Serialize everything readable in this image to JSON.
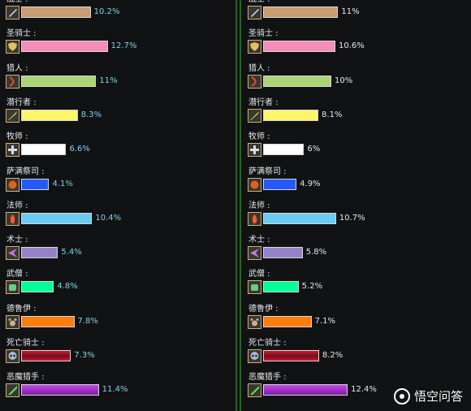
{
  "chart_data": [
    {
      "type": "bar",
      "categories": [
        "战士",
        "圣骑士",
        "猎人",
        "潜行者",
        "牧师",
        "萨满祭司",
        "法师",
        "术士",
        "武僧",
        "德鲁伊",
        "死亡骑士",
        "恶魔猎手"
      ],
      "values": [
        10.2,
        12.7,
        11,
        8.3,
        6.6,
        4.1,
        10.4,
        5.4,
        4.8,
        7.8,
        7.3,
        11.4
      ],
      "value_labels": [
        "10.2%",
        "12.7%",
        "11%",
        "8.3%",
        "6.6%",
        "4.1%",
        "10.4%",
        "5.4%",
        "4.8%",
        "7.8%",
        "7.3%",
        "11.4%"
      ],
      "orientation": "horizontal",
      "grid": false
    },
    {
      "type": "bar",
      "categories": [
        "战士",
        "圣骑士",
        "猎人",
        "潜行者",
        "牧师",
        "萨满祭司",
        "法师",
        "术士",
        "武僧",
        "德鲁伊",
        "死亡骑士",
        "恶魔猎手"
      ],
      "values": [
        11,
        10.6,
        10,
        8.1,
        6,
        4.9,
        10.7,
        5.8,
        5.2,
        7.1,
        8.2,
        12.4
      ],
      "value_labels": [
        "11%",
        "10.6%",
        "10%",
        "8.1%",
        "6%",
        "4.9%",
        "10.7%",
        "5.8%",
        "5.2%",
        "7.1%",
        "8.2%",
        "12.4%"
      ],
      "orientation": "horizontal",
      "grid": false
    }
  ],
  "class_colors": [
    "#c79c6e",
    "#f58cba",
    "#abd473",
    "#fff569",
    "#ffffff",
    "#2459ff",
    "#69ccf0",
    "#9482c9",
    "#00ff96",
    "#ff7d0a",
    "#c41f3b",
    "#a330c9"
  ],
  "class_icons": [
    "sword-icon",
    "shield-icon",
    "bow-icon",
    "dagger-icon",
    "cross-icon",
    "totem-icon",
    "fire-icon",
    "shadow-icon",
    "fist-icon",
    "paw-icon",
    "skull-icon",
    "blade-icon"
  ],
  "watermark": {
    "text": "悟空问答"
  }
}
